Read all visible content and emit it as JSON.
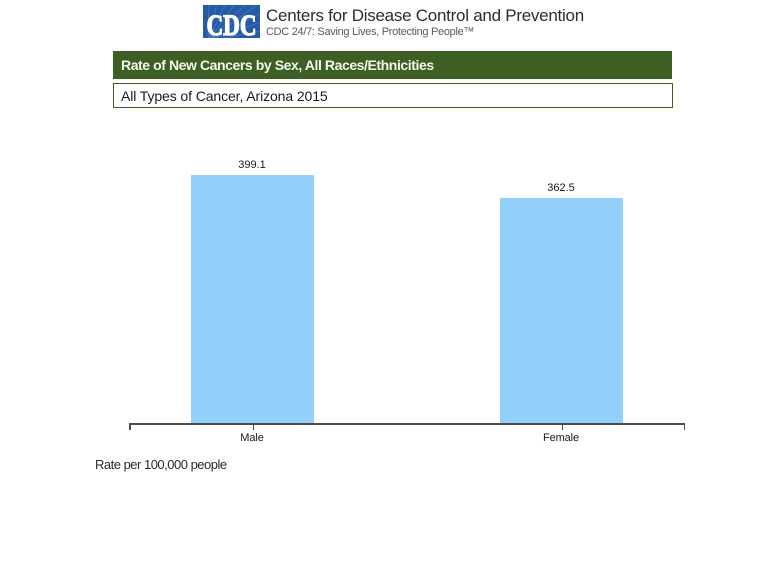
{
  "header": {
    "logo_text": "CDC",
    "org_name": "Centers for Disease Control and Prevention",
    "tagline": "CDC 24/7: Saving Lives, Protecting People™"
  },
  "colors": {
    "title_bar_green": "#3e5f23",
    "bar_blue": "#92d0fa",
    "logo_blue": "#2258a5",
    "axis_line": "#4d4d4d"
  },
  "chart_data": {
    "type": "bar",
    "title": "Rate of New Cancers by Sex, All Races/Ethnicities",
    "subtitle": "All Types of Cancer, Arizona 2015",
    "categories": [
      "Male",
      "Female"
    ],
    "values": [
      399.1,
      362.5
    ],
    "value_labels": [
      "399.1",
      "362.5"
    ],
    "xlabel": "",
    "ylabel": "Rate per 100,000 people",
    "ylim": [
      0,
      450
    ],
    "grid": false,
    "legend": false,
    "bar_color": "#92d0fa"
  }
}
